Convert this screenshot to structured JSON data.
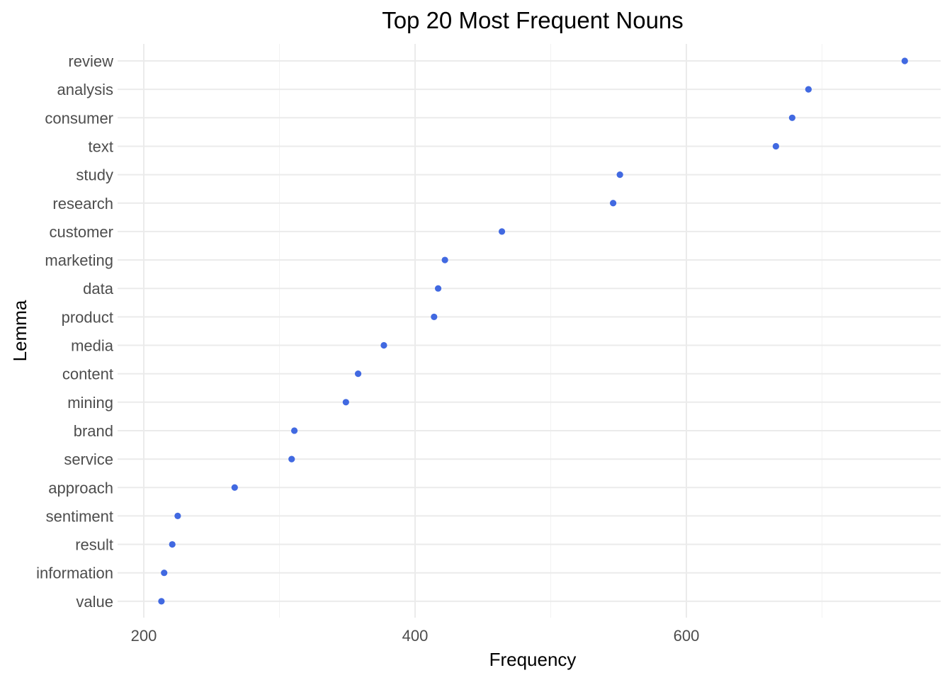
{
  "chart_data": {
    "type": "scatter",
    "title": "Top 20 Most Frequent Nouns",
    "xlabel": "Frequency",
    "ylabel": "Lemma",
    "xlim": [
      190,
      780
    ],
    "x_ticks": [
      200,
      400,
      600
    ],
    "grid": true,
    "legend": "none",
    "point_color": "#4169e1",
    "categories": [
      "review",
      "analysis",
      "consumer",
      "text",
      "study",
      "research",
      "customer",
      "marketing",
      "data",
      "product",
      "media",
      "content",
      "mining",
      "brand",
      "service",
      "approach",
      "sentiment",
      "result",
      "information",
      "value"
    ],
    "values": [
      761,
      690,
      678,
      666,
      551,
      546,
      464,
      422,
      417,
      414,
      377,
      358,
      349,
      311,
      309,
      267,
      225,
      221,
      215,
      213
    ]
  }
}
